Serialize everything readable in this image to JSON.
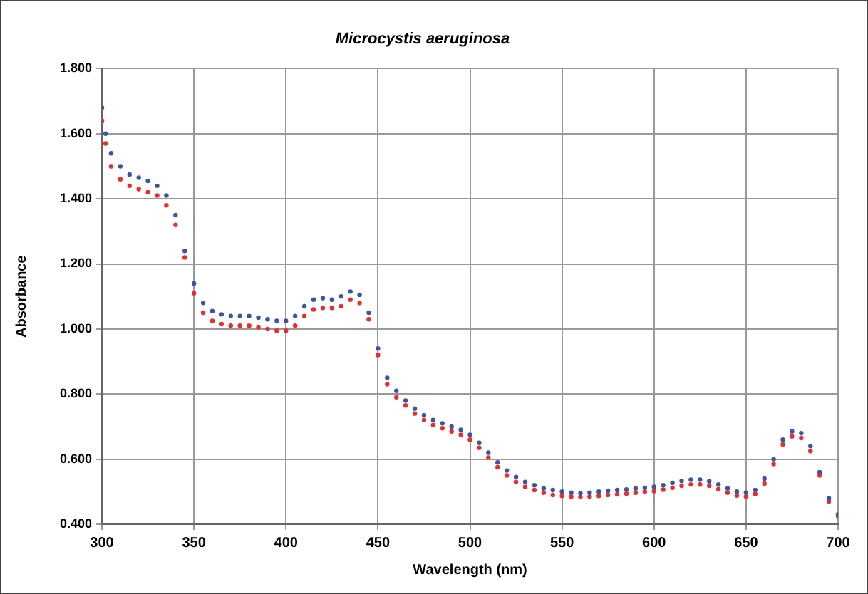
{
  "chart_data": {
    "type": "scatter",
    "title": "Microcystis aeruginosa",
    "xlabel": "Wavelength (nm)",
    "ylabel": "Absorbance",
    "x": [
      300,
      302,
      305,
      310,
      315,
      320,
      325,
      330,
      335,
      340,
      345,
      350,
      355,
      360,
      365,
      370,
      375,
      380,
      385,
      390,
      395,
      400,
      405,
      410,
      415,
      420,
      425,
      430,
      435,
      440,
      445,
      450,
      455,
      460,
      465,
      470,
      475,
      480,
      485,
      490,
      495,
      500,
      505,
      510,
      515,
      520,
      525,
      530,
      535,
      540,
      545,
      550,
      555,
      560,
      565,
      570,
      575,
      580,
      585,
      590,
      595,
      600,
      605,
      610,
      615,
      620,
      625,
      630,
      635,
      640,
      645,
      650,
      655,
      660,
      665,
      670,
      675,
      680,
      685,
      690,
      695,
      700
    ],
    "series": [
      {
        "color": "#3a55a8",
        "values": [
          1.68,
          1.6,
          1.54,
          1.5,
          1.475,
          1.465,
          1.455,
          1.44,
          1.41,
          1.35,
          1.24,
          1.14,
          1.08,
          1.055,
          1.045,
          1.04,
          1.04,
          1.04,
          1.035,
          1.03,
          1.025,
          1.025,
          1.04,
          1.07,
          1.09,
          1.095,
          1.09,
          1.1,
          1.115,
          1.105,
          1.05,
          0.94,
          0.85,
          0.81,
          0.78,
          0.755,
          0.735,
          0.72,
          0.71,
          0.7,
          0.69,
          0.675,
          0.65,
          0.62,
          0.59,
          0.565,
          0.545,
          0.53,
          0.52,
          0.51,
          0.505,
          0.5,
          0.497,
          0.495,
          0.497,
          0.5,
          0.503,
          0.505,
          0.507,
          0.51,
          0.512,
          0.515,
          0.52,
          0.527,
          0.533,
          0.537,
          0.537,
          0.532,
          0.522,
          0.51,
          0.5,
          0.497,
          0.505,
          0.54,
          0.6,
          0.66,
          0.685,
          0.68,
          0.64,
          0.56,
          0.48,
          0.43
        ]
      },
      {
        "color": "#ee2a2a",
        "values": [
          1.64,
          1.57,
          1.5,
          1.46,
          1.44,
          1.43,
          1.42,
          1.41,
          1.38,
          1.32,
          1.22,
          1.11,
          1.05,
          1.025,
          1.015,
          1.01,
          1.01,
          1.01,
          1.005,
          1.0,
          0.995,
          0.995,
          1.01,
          1.04,
          1.06,
          1.065,
          1.065,
          1.07,
          1.09,
          1.08,
          1.03,
          0.92,
          0.83,
          0.79,
          0.765,
          0.74,
          0.72,
          0.705,
          0.695,
          0.685,
          0.675,
          0.66,
          0.635,
          0.605,
          0.575,
          0.55,
          0.53,
          0.515,
          0.505,
          0.497,
          0.49,
          0.487,
          0.485,
          0.484,
          0.485,
          0.487,
          0.49,
          0.492,
          0.494,
          0.497,
          0.5,
          0.502,
          0.506,
          0.512,
          0.518,
          0.522,
          0.522,
          0.518,
          0.508,
          0.497,
          0.488,
          0.485,
          0.493,
          0.525,
          0.585,
          0.645,
          0.67,
          0.665,
          0.625,
          0.55,
          0.47,
          0.425
        ]
      }
    ],
    "xlim": [
      300,
      700
    ],
    "xticks": [
      300,
      350,
      400,
      450,
      500,
      550,
      600,
      650,
      700
    ],
    "ylim": [
      0.4,
      1.8
    ],
    "yticks": [
      {
        "value": 0.4,
        "label": "0.400"
      },
      {
        "value": 0.6,
        "label": "0.600"
      },
      {
        "value": 0.8,
        "label": "0.800"
      },
      {
        "value": 1.0,
        "label": "1.000"
      },
      {
        "value": 1.2,
        "label": "1.200"
      },
      {
        "value": 1.4,
        "label": "1.400"
      },
      {
        "value": 1.6,
        "label": "1.600"
      },
      {
        "value": 1.8,
        "label": "1.800"
      }
    ],
    "grid": true,
    "legend": false,
    "marker": "circle"
  }
}
